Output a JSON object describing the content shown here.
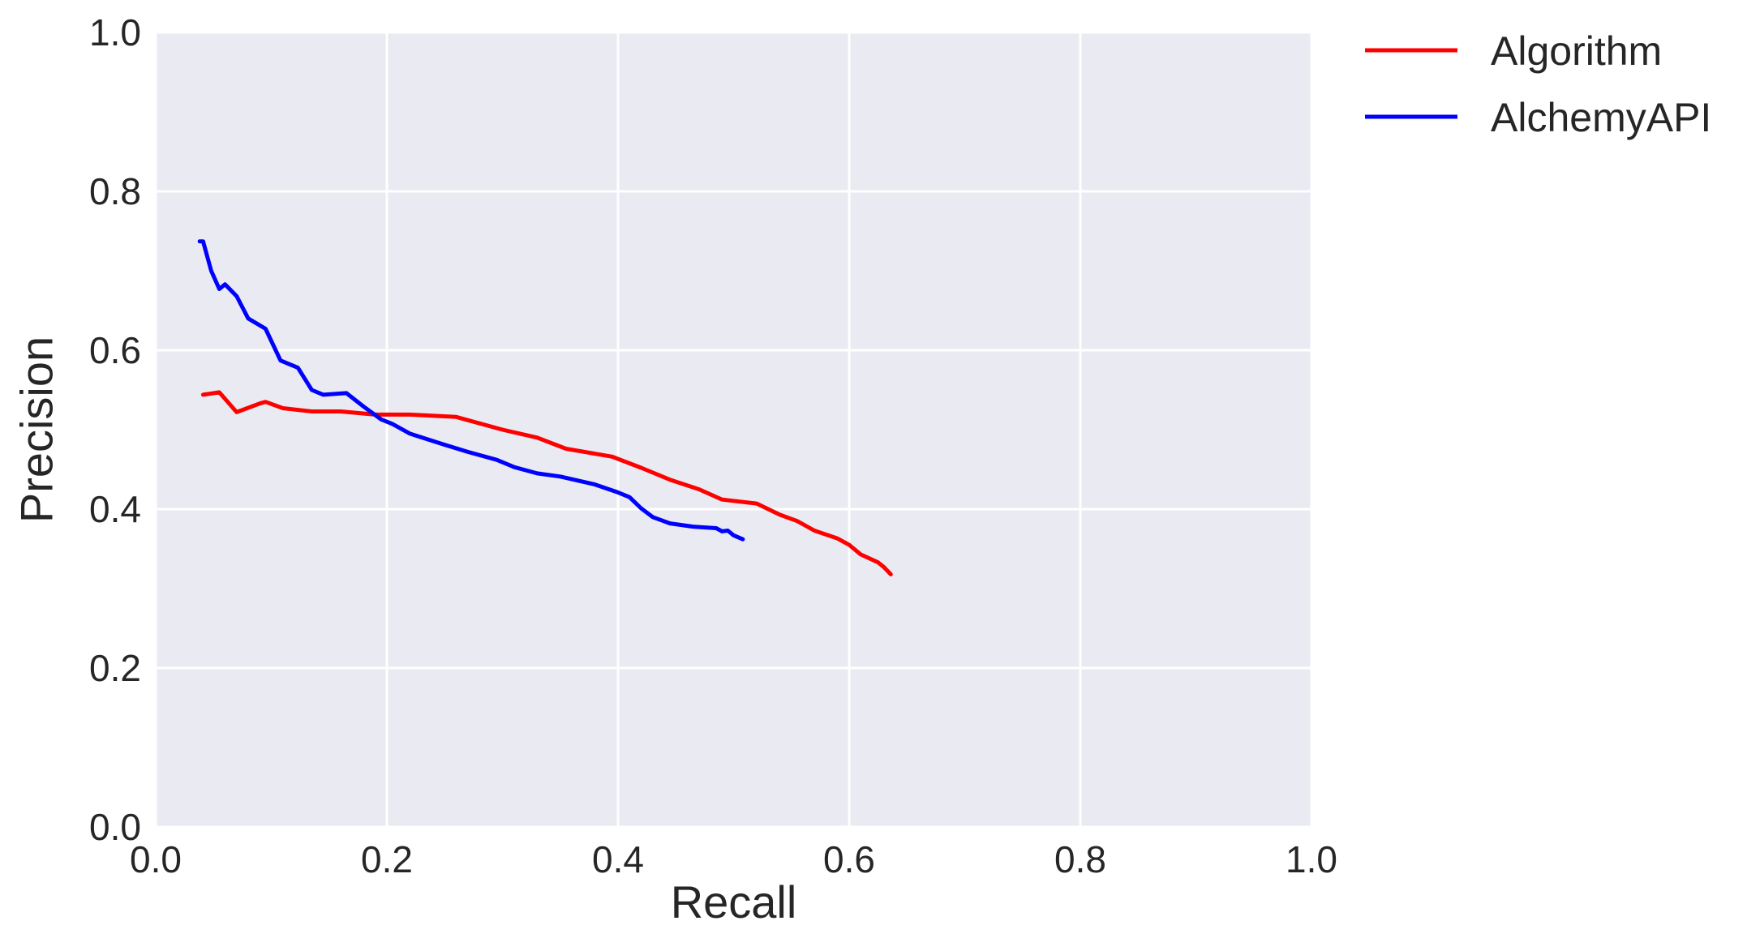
{
  "chart_data": {
    "type": "line",
    "title": "",
    "xlabel": "Recall",
    "ylabel": "Precision",
    "xlim": [
      0.0,
      1.0
    ],
    "ylim": [
      0.0,
      1.0
    ],
    "xticks": [
      "0.0",
      "0.2",
      "0.4",
      "0.6",
      "0.8",
      "1.0"
    ],
    "yticks": [
      "0.0",
      "0.2",
      "0.4",
      "0.6",
      "0.8",
      "1.0"
    ],
    "grid": true,
    "background": "#eaeaf2",
    "grid_color": "#ffffff",
    "legend_position": "outside top-right",
    "series": [
      {
        "name": "Algorithm",
        "color": "#ff0000",
        "points": [
          [
            0.041,
            0.544
          ],
          [
            0.055,
            0.547
          ],
          [
            0.07,
            0.522
          ],
          [
            0.09,
            0.533
          ],
          [
            0.095,
            0.535
          ],
          [
            0.11,
            0.527
          ],
          [
            0.135,
            0.523
          ],
          [
            0.16,
            0.523
          ],
          [
            0.19,
            0.519
          ],
          [
            0.22,
            0.519
          ],
          [
            0.26,
            0.516
          ],
          [
            0.3,
            0.5
          ],
          [
            0.33,
            0.49
          ],
          [
            0.355,
            0.476
          ],
          [
            0.395,
            0.466
          ],
          [
            0.42,
            0.452
          ],
          [
            0.445,
            0.437
          ],
          [
            0.47,
            0.425
          ],
          [
            0.49,
            0.412
          ],
          [
            0.52,
            0.407
          ],
          [
            0.54,
            0.393
          ],
          [
            0.555,
            0.385
          ],
          [
            0.57,
            0.373
          ],
          [
            0.59,
            0.363
          ],
          [
            0.6,
            0.355
          ],
          [
            0.61,
            0.343
          ],
          [
            0.625,
            0.333
          ],
          [
            0.63,
            0.327
          ],
          [
            0.636,
            0.318
          ]
        ]
      },
      {
        "name": "AlchemyAPI",
        "color": "#0000ff",
        "points": [
          [
            0.038,
            0.737
          ],
          [
            0.041,
            0.737
          ],
          [
            0.048,
            0.7
          ],
          [
            0.055,
            0.677
          ],
          [
            0.06,
            0.683
          ],
          [
            0.07,
            0.668
          ],
          [
            0.08,
            0.64
          ],
          [
            0.095,
            0.627
          ],
          [
            0.108,
            0.587
          ],
          [
            0.123,
            0.578
          ],
          [
            0.135,
            0.55
          ],
          [
            0.145,
            0.544
          ],
          [
            0.165,
            0.546
          ],
          [
            0.18,
            0.529
          ],
          [
            0.195,
            0.513
          ],
          [
            0.205,
            0.507
          ],
          [
            0.22,
            0.495
          ],
          [
            0.25,
            0.481
          ],
          [
            0.27,
            0.472
          ],
          [
            0.295,
            0.462
          ],
          [
            0.31,
            0.453
          ],
          [
            0.33,
            0.445
          ],
          [
            0.35,
            0.441
          ],
          [
            0.38,
            0.431
          ],
          [
            0.4,
            0.421
          ],
          [
            0.41,
            0.415
          ],
          [
            0.42,
            0.401
          ],
          [
            0.43,
            0.39
          ],
          [
            0.445,
            0.382
          ],
          [
            0.465,
            0.378
          ],
          [
            0.485,
            0.376
          ],
          [
            0.49,
            0.372
          ],
          [
            0.495,
            0.373
          ],
          [
            0.5,
            0.367
          ],
          [
            0.508,
            0.362
          ]
        ]
      }
    ]
  }
}
